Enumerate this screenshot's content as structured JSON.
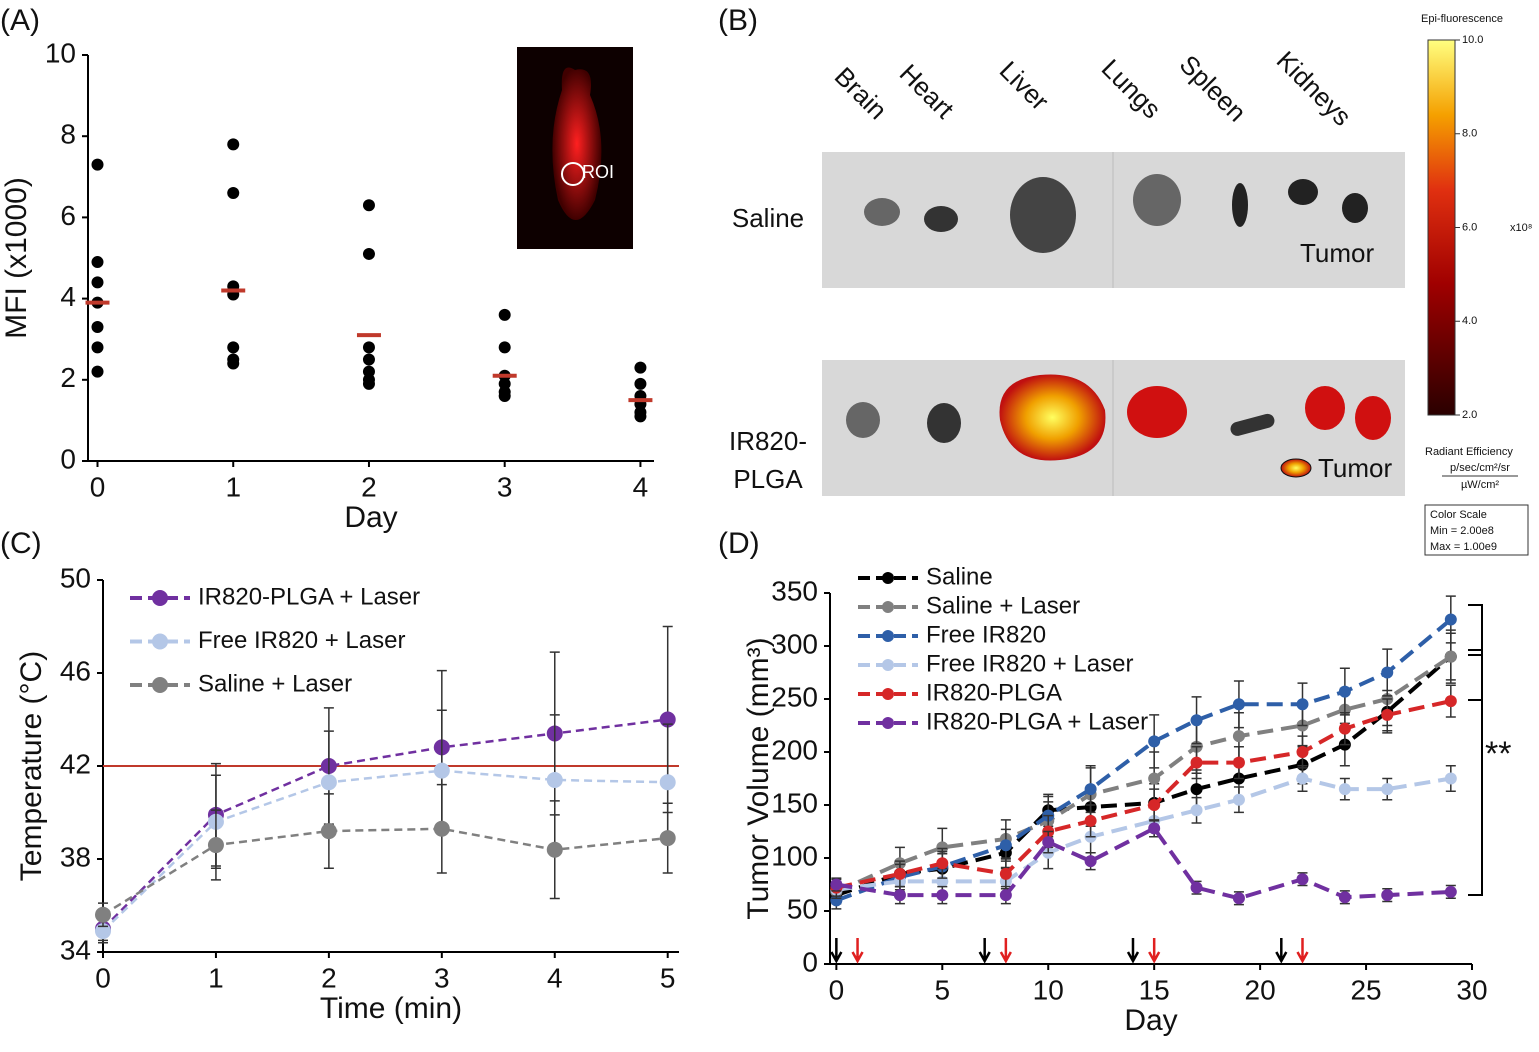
{
  "chart_data": [
    {
      "type": "scatter",
      "title": "(A)",
      "xlabel": "Day",
      "ylabel": "MFI (x1000)",
      "inset_label": "ROI",
      "xlim": [
        -0.07,
        4.1
      ],
      "xticks": [
        0,
        1,
        2,
        3,
        4
      ],
      "ylim": [
        0,
        10
      ],
      "yticks": [
        0,
        2,
        4,
        6,
        8,
        10
      ],
      "points": {
        "color": "#000000",
        "x": [
          0,
          0,
          0,
          0,
          0,
          0,
          0,
          1,
          1,
          1,
          1,
          1,
          1,
          1,
          2,
          2,
          2,
          2,
          2,
          2,
          2,
          3,
          3,
          3,
          3,
          3,
          3,
          4,
          4,
          4,
          4,
          4,
          4
        ],
        "values": [
          7.3,
          4.9,
          4.4,
          3.9,
          3.3,
          2.8,
          2.2,
          7.8,
          6.6,
          4.3,
          4.1,
          2.8,
          2.5,
          2.4,
          6.3,
          5.1,
          2.8,
          2.5,
          2.2,
          2.0,
          1.9,
          3.6,
          2.8,
          2.1,
          1.9,
          1.7,
          1.6,
          2.3,
          1.9,
          1.6,
          1.4,
          1.2,
          1.1
        ]
      },
      "means": {
        "color": "#c0392b",
        "x": [
          0,
          1,
          2,
          3,
          4
        ],
        "values": [
          3.9,
          4.2,
          3.1,
          2.1,
          1.5
        ]
      }
    },
    {
      "type": "line",
      "title": "(C)",
      "xlabel": "Time (min)",
      "ylabel": "Temperature (°C)",
      "xlim": [
        0,
        5.1
      ],
      "xticks": [
        0,
        1,
        2,
        3,
        4,
        5
      ],
      "ylim": [
        34,
        50
      ],
      "yticks": [
        34,
        38,
        42,
        46,
        50
      ],
      "reference_line": {
        "value": 42,
        "color": "#c0392b"
      },
      "x": [
        0,
        1,
        2,
        3,
        4,
        5
      ],
      "series": [
        {
          "name": "IR820-PLGA + Laser",
          "color": "#7030a0",
          "values": [
            35.0,
            39.9,
            42.0,
            42.8,
            43.4,
            44.0
          ],
          "errors": [
            0.5,
            2.2,
            2.5,
            3.3,
            3.5,
            4.0
          ]
        },
        {
          "name": "Free IR820 + Laser",
          "color": "#b4c7e7",
          "values": [
            34.9,
            39.6,
            41.3,
            41.8,
            41.4,
            41.3
          ],
          "errors": [
            0.5,
            2.0,
            2.2,
            2.6,
            2.8,
            2.5
          ]
        },
        {
          "name": "Saline + Laser",
          "color": "#808080",
          "values": [
            35.6,
            38.6,
            39.2,
            39.3,
            38.4,
            38.9
          ],
          "errors": [
            0.5,
            1.5,
            1.6,
            1.9,
            2.1,
            1.5
          ]
        }
      ]
    },
    {
      "type": "line",
      "title": "(D)",
      "xlabel": "Day",
      "ylabel": "Tumor Volume (mm³)",
      "annotation": "**",
      "xlim": [
        -0.3,
        30
      ],
      "xticks": [
        0,
        5,
        10,
        15,
        20,
        25,
        30
      ],
      "ylim": [
        0,
        350
      ],
      "yticks": [
        0,
        50,
        100,
        150,
        200,
        250,
        300,
        350
      ],
      "arrows": {
        "black": [
          0,
          7,
          14,
          21
        ],
        "red": [
          1,
          8,
          15,
          22
        ]
      },
      "x": [
        0,
        3,
        5,
        8,
        10,
        12,
        15,
        17,
        19,
        22,
        24,
        26,
        29
      ],
      "series": [
        {
          "name": "Saline",
          "color": "#000000",
          "values": [
            65,
            85,
            90,
            105,
            145,
            148,
            152,
            165,
            175,
            188,
            207,
            238,
            290
          ],
          "errors": [
            8,
            12,
            14,
            14,
            15,
            18,
            18,
            18,
            18,
            18,
            20,
            20,
            22
          ]
        },
        {
          "name": "Saline + Laser",
          "color": "#808080",
          "values": [
            68,
            95,
            110,
            118,
            135,
            160,
            175,
            205,
            215,
            225,
            240,
            250,
            290
          ],
          "errors": [
            8,
            15,
            18,
            18,
            18,
            25,
            25,
            25,
            22,
            20,
            20,
            25,
            25
          ]
        },
        {
          "name": "Free IR820",
          "color": "#2e5fa8",
          "values": [
            60,
            82,
            92,
            112,
            140,
            165,
            210,
            230,
            245,
            245,
            257,
            275,
            325
          ],
          "errors": [
            8,
            12,
            14,
            15,
            18,
            22,
            25,
            22,
            22,
            20,
            22,
            22,
            22
          ]
        },
        {
          "name": "Free IR820 + Laser",
          "color": "#b4c7e7",
          "values": [
            70,
            78,
            78,
            78,
            105,
            120,
            135,
            145,
            155,
            175,
            165,
            165,
            175
          ],
          "errors": [
            8,
            10,
            12,
            12,
            15,
            15,
            15,
            12,
            12,
            12,
            10,
            10,
            12
          ]
        },
        {
          "name": "IR820-PLGA",
          "color": "#d62728",
          "values": [
            72,
            85,
            95,
            85,
            125,
            135,
            150,
            190,
            190,
            200,
            222,
            235,
            248
          ],
          "errors": [
            8,
            12,
            14,
            14,
            15,
            15,
            15,
            15,
            15,
            15,
            15,
            15,
            15
          ]
        },
        {
          "name": "IR820-PLGA + Laser",
          "color": "#7030a0",
          "values": [
            75,
            65,
            65,
            65,
            115,
            97,
            128,
            72,
            62,
            80,
            63,
            65,
            68
          ],
          "errors": [
            6,
            8,
            8,
            8,
            10,
            8,
            8,
            6,
            6,
            6,
            6,
            6,
            6
          ]
        }
      ]
    }
  ],
  "panel_b": {
    "title": "(B)",
    "organs": [
      "Brain",
      "Heart",
      "Liver",
      "Lungs",
      "Spleen",
      "Kidneys"
    ],
    "row_labels": {
      "saline": "Saline",
      "plga": [
        "IR820-",
        "PLGA"
      ]
    },
    "tumor_labels": [
      "Tumor",
      "Tumor"
    ],
    "colorbar": {
      "title": "Epi-fluorescence",
      "lim": [
        2,
        10
      ],
      "ticks": [
        {
          "value": 10,
          "label": "10.0"
        },
        {
          "value": 8,
          "label": "8.0"
        },
        {
          "value": 6,
          "label": "6.0"
        },
        {
          "value": 4,
          "label": "4.0"
        },
        {
          "value": 2,
          "label": "2.0"
        }
      ],
      "multiplier": "x10⁸",
      "unit_title": "Radiant Efficiency",
      "unit_num": "p/sec/cm²/sr",
      "unit_den": "µW/cm²",
      "scale_box": [
        "Color Scale",
        "Min = 2.00e8",
        "Max = 1.00e9"
      ]
    }
  }
}
